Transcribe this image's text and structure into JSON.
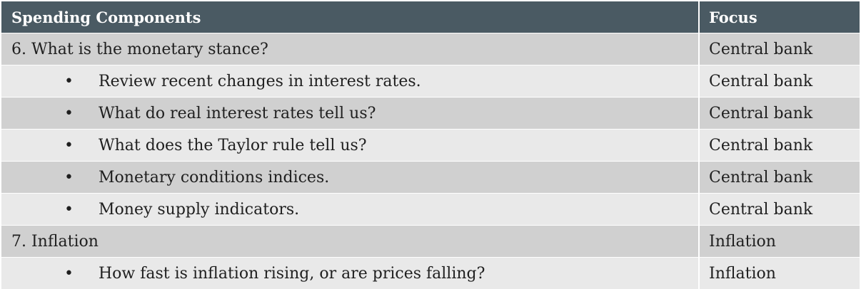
{
  "table": {
    "headers": {
      "components": "Spending Components",
      "focus": "Focus"
    },
    "rows": [
      {
        "kind": "section",
        "bullet": "",
        "text": "6. What is the monetary stance?",
        "focus": "Central bank"
      },
      {
        "kind": "bullet",
        "bullet": "•",
        "text": "Review recent changes in interest rates.",
        "focus": "Central bank"
      },
      {
        "kind": "bullet",
        "bullet": "•",
        "text": "What do real interest rates tell us?",
        "focus": "Central bank"
      },
      {
        "kind": "bullet",
        "bullet": "•",
        "text": "What does the Taylor rule tell us?",
        "focus": "Central bank"
      },
      {
        "kind": "bullet",
        "bullet": "•",
        "text": "Monetary conditions indices.",
        "focus": "Central bank"
      },
      {
        "kind": "bullet",
        "bullet": "•",
        "text": "Money supply indicators.",
        "focus": "Central bank"
      },
      {
        "kind": "section",
        "bullet": "",
        "text": "7. Inflation",
        "focus": "Inflation"
      },
      {
        "kind": "bullet",
        "bullet": "•",
        "text": "How fast is inflation rising, or are prices falling?",
        "focus": "Inflation"
      }
    ]
  },
  "colors": {
    "header_bg": "#4a5a63",
    "row_dark": "#d0d0d0",
    "row_light": "#e9e9e9"
  }
}
